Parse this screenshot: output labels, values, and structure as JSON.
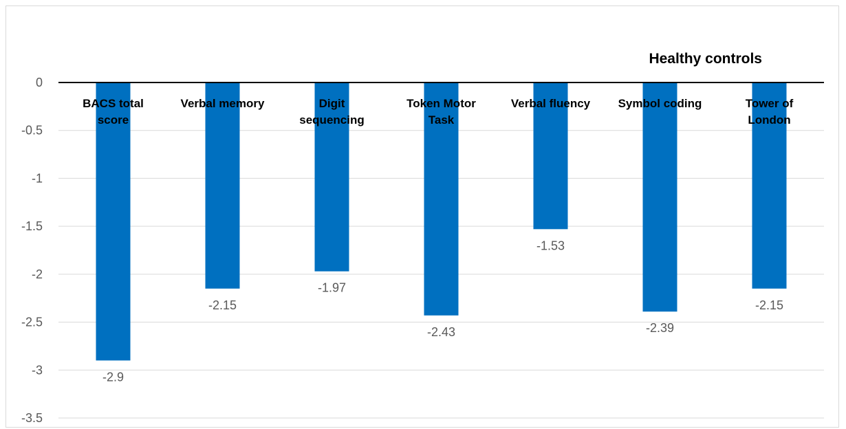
{
  "chart_data": {
    "type": "bar",
    "title": "Healthy controls",
    "categories": [
      [
        "BACS total",
        "score"
      ],
      [
        "Verbal memory"
      ],
      [
        "Digit",
        "sequencing"
      ],
      [
        "Token Motor",
        "Task"
      ],
      [
        "Verbal fluency"
      ],
      [
        "Symbol coding"
      ],
      [
        "Tower of",
        "London"
      ]
    ],
    "values": [
      -2.9,
      -2.15,
      -1.97,
      -2.43,
      -1.53,
      -2.39,
      -2.15
    ],
    "data_labels": [
      "-2.9",
      "-2.15",
      "-1.97",
      "-2.43",
      "-1.53",
      "-2.39",
      "-2.15"
    ],
    "yticks": [
      "0",
      "-0.5",
      "-1",
      "-1.5",
      "-2",
      "-2.5",
      "-3",
      "-3.5"
    ],
    "ylim": [
      -3.5,
      0
    ],
    "xlabel": "",
    "ylabel": "",
    "grid": true,
    "bar_color": "#0070C0",
    "grid_color": "#d9d9d9",
    "axis_color": "#000000"
  }
}
